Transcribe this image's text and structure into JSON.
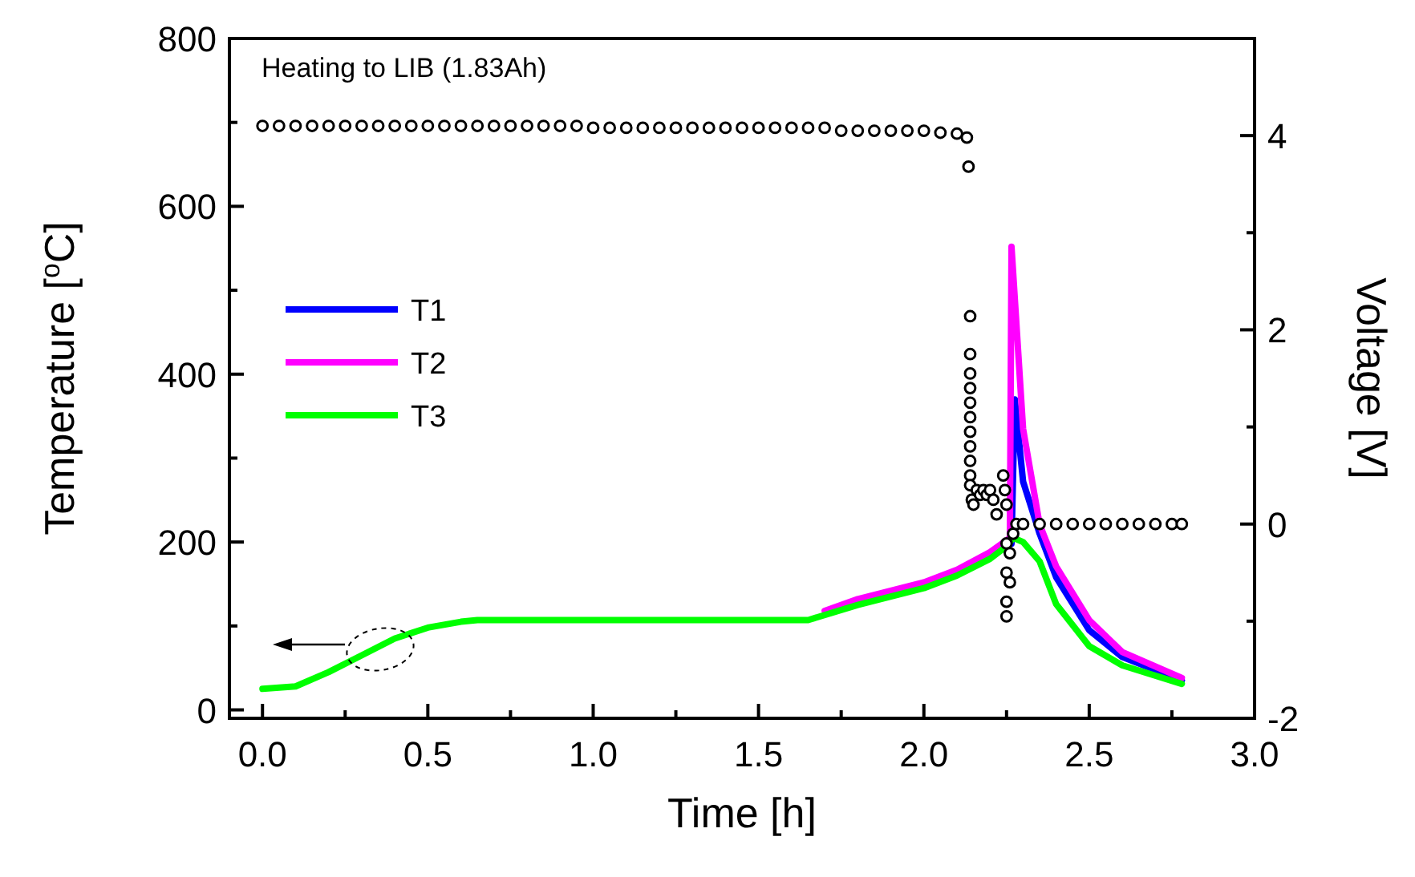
{
  "chart_data": {
    "type": "line",
    "xlabel": "Time [h]",
    "ylabel": "Temperature [$^{o}$C]",
    "y2label": "Voltage [V]",
    "annotations": [
      "Heating to LIB (1.83Ah)"
    ],
    "xlim": [
      -0.1,
      3.0
    ],
    "ylim": [
      -10,
      800
    ],
    "y2lim": [
      -2,
      5
    ],
    "xticks": [
      {
        "value": 0,
        "label": "0.0"
      },
      {
        "value": 0.25,
        "label": null
      },
      {
        "value": 0.5,
        "label": "0.5"
      },
      {
        "value": 0.75,
        "label": null
      },
      {
        "value": 1,
        "label": "1.0"
      },
      {
        "value": 1.25,
        "label": null
      },
      {
        "value": 1.5,
        "label": "1.5"
      },
      {
        "value": 1.75,
        "label": null
      },
      {
        "value": 2,
        "label": "2.0"
      },
      {
        "value": 2.25,
        "label": null
      },
      {
        "value": 2.5,
        "label": "2.5"
      },
      {
        "value": 2.75,
        "label": null
      },
      {
        "value": 3,
        "label": "3.0"
      }
    ],
    "yticks": [
      0,
      {
        "value": 100,
        "label": null
      },
      200,
      {
        "value": 300,
        "label": null
      },
      400,
      {
        "value": 500,
        "label": null
      },
      600,
      {
        "value": 700,
        "label": null
      },
      800
    ],
    "y2ticks": [
      -2,
      {
        "value": -1,
        "label": null
      },
      0,
      {
        "value": 1,
        "label": null
      },
      2,
      {
        "value": 3,
        "label": null
      },
      4
    ],
    "grid": false,
    "legend": "left",
    "line_style": "solid",
    "series": [
      {
        "name": "T1",
        "color": "#0000ff",
        "x": [
          2.265,
          2.275,
          2.3,
          2.35,
          2.4,
          2.5,
          2.6,
          2.78
        ],
        "values": [
          198,
          370,
          272,
          210,
          158,
          95,
          63,
          35
        ]
      },
      {
        "name": "T2",
        "color": "#ff00ff",
        "x": [
          1.7,
          1.8,
          2.0,
          2.1,
          2.2,
          2.26,
          2.265,
          2.3,
          2.35,
          2.4,
          2.5,
          2.6,
          2.78
        ],
        "values": [
          118,
          132,
          152,
          167,
          188,
          205,
          552,
          335,
          221,
          171,
          107,
          69,
          38
        ]
      },
      {
        "name": "T3",
        "color": "#00ff00",
        "x": [
          0,
          0.1,
          0.2,
          0.3,
          0.4,
          0.5,
          0.6,
          0.65,
          1.0,
          1.65,
          1.8,
          2.0,
          2.1,
          2.2,
          2.25,
          2.27,
          2.3,
          2.35,
          2.4,
          2.5,
          2.6,
          2.78
        ],
        "values": [
          25,
          28,
          45,
          65,
          85,
          98,
          105,
          107,
          107,
          107,
          125,
          145,
          160,
          180,
          195,
          205,
          200,
          177,
          126,
          76,
          53,
          31
        ]
      },
      {
        "type": "scatter",
        "axis": "y2",
        "marker": "circle",
        "color": "#000000",
        "x": [
          0,
          0.05,
          0.1,
          0.15,
          0.2,
          0.25,
          0.3,
          0.35,
          0.4,
          0.45,
          0.5,
          0.55,
          0.6,
          0.65,
          0.7,
          0.75,
          0.8,
          0.85,
          0.9,
          0.95,
          1.0,
          1.05,
          1.1,
          1.15,
          1.2,
          1.25,
          1.3,
          1.35,
          1.4,
          1.45,
          1.5,
          1.55,
          1.6,
          1.65,
          1.7,
          1.75,
          1.8,
          1.85,
          1.9,
          1.95,
          2.0,
          2.05,
          2.1,
          2.13,
          2.135,
          2.14,
          2.14,
          2.14,
          2.14,
          2.14,
          2.14,
          2.14,
          2.14,
          2.14,
          2.14,
          2.14,
          2.145,
          2.15,
          2.16,
          2.17,
          2.18,
          2.19,
          2.2,
          2.21,
          2.22,
          2.24,
          2.245,
          2.25,
          2.25,
          2.25,
          2.25,
          2.25,
          2.26,
          2.26,
          2.27,
          2.28,
          2.3,
          2.35,
          2.4,
          2.45,
          2.5,
          2.55,
          2.6,
          2.65,
          2.7,
          2.75,
          2.78
        ],
        "values": [
          4.1,
          4.1,
          4.1,
          4.1,
          4.1,
          4.1,
          4.1,
          4.1,
          4.1,
          4.1,
          4.1,
          4.1,
          4.1,
          4.1,
          4.1,
          4.1,
          4.1,
          4.1,
          4.1,
          4.1,
          4.08,
          4.08,
          4.08,
          4.08,
          4.08,
          4.08,
          4.08,
          4.08,
          4.08,
          4.08,
          4.08,
          4.08,
          4.08,
          4.08,
          4.08,
          4.05,
          4.05,
          4.05,
          4.05,
          4.05,
          4.05,
          4.03,
          4.02,
          3.98,
          3.68,
          2.14,
          1.75,
          1.55,
          1.4,
          1.25,
          1.1,
          0.95,
          0.8,
          0.65,
          0.5,
          0.4,
          0.25,
          0.2,
          0.35,
          0.3,
          0.35,
          0.3,
          0.35,
          0.25,
          0.1,
          0.5,
          0.35,
          0.2,
          -0.2,
          -0.5,
          -0.8,
          -0.95,
          -0.6,
          -0.3,
          -0.1,
          0,
          0,
          0,
          0,
          0,
          0,
          0,
          0,
          0,
          0,
          0,
          0
        ]
      }
    ]
  }
}
